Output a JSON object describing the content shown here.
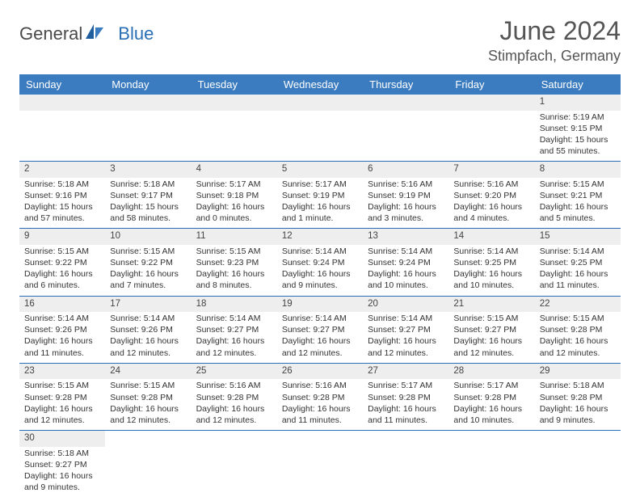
{
  "brand": {
    "name_main": "General",
    "name_accent": "Blue"
  },
  "title": "June 2024",
  "location": "Stimpfach, Germany",
  "colors": {
    "header_bg": "#3b7bbf",
    "header_text": "#ffffff",
    "row_border": "#2a6fb5",
    "daynum_bg": "#eeeeee",
    "cell_bg": "#ffffff",
    "text": "#333333",
    "brand_gray": "#4a4a4a",
    "brand_blue": "#2a6fb5"
  },
  "typography": {
    "title_fontsize": 32,
    "location_fontsize": 18,
    "header_fontsize": 13,
    "daynum_fontsize": 11.5,
    "body_fontsize": 10.5
  },
  "weekdays": [
    "Sunday",
    "Monday",
    "Tuesday",
    "Wednesday",
    "Thursday",
    "Friday",
    "Saturday"
  ],
  "weeks": [
    [
      null,
      null,
      null,
      null,
      null,
      null,
      {
        "day": "1",
        "sunrise": "Sunrise: 5:19 AM",
        "sunset": "Sunset: 9:15 PM",
        "daylight": "Daylight: 15 hours and 55 minutes."
      }
    ],
    [
      {
        "day": "2",
        "sunrise": "Sunrise: 5:18 AM",
        "sunset": "Sunset: 9:16 PM",
        "daylight": "Daylight: 15 hours and 57 minutes."
      },
      {
        "day": "3",
        "sunrise": "Sunrise: 5:18 AM",
        "sunset": "Sunset: 9:17 PM",
        "daylight": "Daylight: 15 hours and 58 minutes."
      },
      {
        "day": "4",
        "sunrise": "Sunrise: 5:17 AM",
        "sunset": "Sunset: 9:18 PM",
        "daylight": "Daylight: 16 hours and 0 minutes."
      },
      {
        "day": "5",
        "sunrise": "Sunrise: 5:17 AM",
        "sunset": "Sunset: 9:19 PM",
        "daylight": "Daylight: 16 hours and 1 minute."
      },
      {
        "day": "6",
        "sunrise": "Sunrise: 5:16 AM",
        "sunset": "Sunset: 9:19 PM",
        "daylight": "Daylight: 16 hours and 3 minutes."
      },
      {
        "day": "7",
        "sunrise": "Sunrise: 5:16 AM",
        "sunset": "Sunset: 9:20 PM",
        "daylight": "Daylight: 16 hours and 4 minutes."
      },
      {
        "day": "8",
        "sunrise": "Sunrise: 5:15 AM",
        "sunset": "Sunset: 9:21 PM",
        "daylight": "Daylight: 16 hours and 5 minutes."
      }
    ],
    [
      {
        "day": "9",
        "sunrise": "Sunrise: 5:15 AM",
        "sunset": "Sunset: 9:22 PM",
        "daylight": "Daylight: 16 hours and 6 minutes."
      },
      {
        "day": "10",
        "sunrise": "Sunrise: 5:15 AM",
        "sunset": "Sunset: 9:22 PM",
        "daylight": "Daylight: 16 hours and 7 minutes."
      },
      {
        "day": "11",
        "sunrise": "Sunrise: 5:15 AM",
        "sunset": "Sunset: 9:23 PM",
        "daylight": "Daylight: 16 hours and 8 minutes."
      },
      {
        "day": "12",
        "sunrise": "Sunrise: 5:14 AM",
        "sunset": "Sunset: 9:24 PM",
        "daylight": "Daylight: 16 hours and 9 minutes."
      },
      {
        "day": "13",
        "sunrise": "Sunrise: 5:14 AM",
        "sunset": "Sunset: 9:24 PM",
        "daylight": "Daylight: 16 hours and 10 minutes."
      },
      {
        "day": "14",
        "sunrise": "Sunrise: 5:14 AM",
        "sunset": "Sunset: 9:25 PM",
        "daylight": "Daylight: 16 hours and 10 minutes."
      },
      {
        "day": "15",
        "sunrise": "Sunrise: 5:14 AM",
        "sunset": "Sunset: 9:25 PM",
        "daylight": "Daylight: 16 hours and 11 minutes."
      }
    ],
    [
      {
        "day": "16",
        "sunrise": "Sunrise: 5:14 AM",
        "sunset": "Sunset: 9:26 PM",
        "daylight": "Daylight: 16 hours and 11 minutes."
      },
      {
        "day": "17",
        "sunrise": "Sunrise: 5:14 AM",
        "sunset": "Sunset: 9:26 PM",
        "daylight": "Daylight: 16 hours and 12 minutes."
      },
      {
        "day": "18",
        "sunrise": "Sunrise: 5:14 AM",
        "sunset": "Sunset: 9:27 PM",
        "daylight": "Daylight: 16 hours and 12 minutes."
      },
      {
        "day": "19",
        "sunrise": "Sunrise: 5:14 AM",
        "sunset": "Sunset: 9:27 PM",
        "daylight": "Daylight: 16 hours and 12 minutes."
      },
      {
        "day": "20",
        "sunrise": "Sunrise: 5:14 AM",
        "sunset": "Sunset: 9:27 PM",
        "daylight": "Daylight: 16 hours and 12 minutes."
      },
      {
        "day": "21",
        "sunrise": "Sunrise: 5:15 AM",
        "sunset": "Sunset: 9:27 PM",
        "daylight": "Daylight: 16 hours and 12 minutes."
      },
      {
        "day": "22",
        "sunrise": "Sunrise: 5:15 AM",
        "sunset": "Sunset: 9:28 PM",
        "daylight": "Daylight: 16 hours and 12 minutes."
      }
    ],
    [
      {
        "day": "23",
        "sunrise": "Sunrise: 5:15 AM",
        "sunset": "Sunset: 9:28 PM",
        "daylight": "Daylight: 16 hours and 12 minutes."
      },
      {
        "day": "24",
        "sunrise": "Sunrise: 5:15 AM",
        "sunset": "Sunset: 9:28 PM",
        "daylight": "Daylight: 16 hours and 12 minutes."
      },
      {
        "day": "25",
        "sunrise": "Sunrise: 5:16 AM",
        "sunset": "Sunset: 9:28 PM",
        "daylight": "Daylight: 16 hours and 12 minutes."
      },
      {
        "day": "26",
        "sunrise": "Sunrise: 5:16 AM",
        "sunset": "Sunset: 9:28 PM",
        "daylight": "Daylight: 16 hours and 11 minutes."
      },
      {
        "day": "27",
        "sunrise": "Sunrise: 5:17 AM",
        "sunset": "Sunset: 9:28 PM",
        "daylight": "Daylight: 16 hours and 11 minutes."
      },
      {
        "day": "28",
        "sunrise": "Sunrise: 5:17 AM",
        "sunset": "Sunset: 9:28 PM",
        "daylight": "Daylight: 16 hours and 10 minutes."
      },
      {
        "day": "29",
        "sunrise": "Sunrise: 5:18 AM",
        "sunset": "Sunset: 9:28 PM",
        "daylight": "Daylight: 16 hours and 9 minutes."
      }
    ],
    [
      {
        "day": "30",
        "sunrise": "Sunrise: 5:18 AM",
        "sunset": "Sunset: 9:27 PM",
        "daylight": "Daylight: 16 hours and 9 minutes."
      },
      null,
      null,
      null,
      null,
      null,
      null
    ]
  ]
}
